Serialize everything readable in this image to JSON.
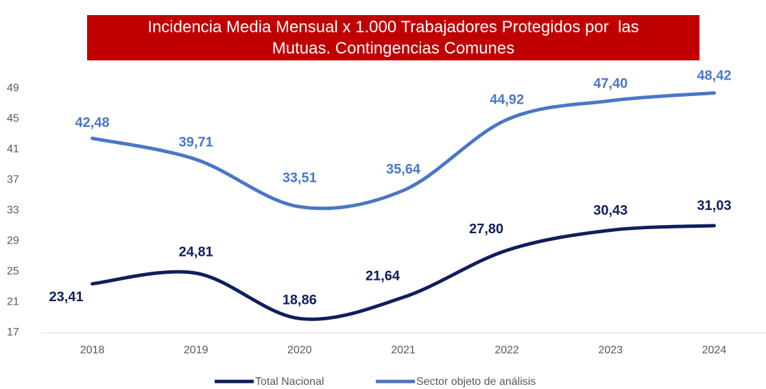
{
  "chart_data": {
    "type": "line",
    "title": "Incidencia Media Mensual x 1.000 Trabajadores Protegidos por  las Mutuas. Contingencias Comunes",
    "categories": [
      "2018",
      "2019",
      "2020",
      "2021",
      "2022",
      "2023",
      "2024"
    ],
    "series": [
      {
        "name": "Total Nacional",
        "color": "#0f1f5c",
        "values": [
          23.41,
          24.81,
          18.86,
          21.64,
          27.8,
          30.43,
          31.03
        ],
        "value_labels": [
          "23,41",
          "24,81",
          "18,86",
          "21,64",
          "27,80",
          "30,43",
          "31,03"
        ]
      },
      {
        "name": "Sector objeto de análisis",
        "color": "#4a76c6",
        "values": [
          42.48,
          39.71,
          33.51,
          35.64,
          44.92,
          47.4,
          48.42
        ],
        "value_labels": [
          "42,48",
          "39,71",
          "33,51",
          "35,64",
          "44,92",
          "47,40",
          "48,42"
        ]
      }
    ],
    "ylim": [
      17,
      49
    ],
    "yticks": [
      17,
      21,
      25,
      29,
      33,
      37,
      41,
      45,
      49
    ],
    "title_color": "#c00000",
    "legend": "bottom"
  }
}
